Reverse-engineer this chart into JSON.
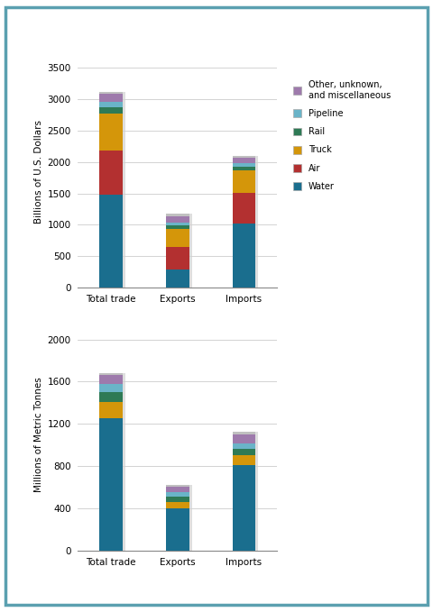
{
  "chart1": {
    "ylabel": "Billions of U.S. Dollars",
    "yticks": [
      0,
      500,
      1000,
      1500,
      2000,
      2500,
      3000,
      3500
    ],
    "ylim": [
      0,
      3700
    ],
    "categories": [
      "Total trade",
      "Exports",
      "Imports"
    ],
    "series": {
      "Water": [
        1480,
        290,
        1020
      ],
      "Air": [
        700,
        360,
        490
      ],
      "Truck": [
        590,
        280,
        350
      ],
      "Rail": [
        100,
        55,
        65
      ],
      "Pipeline": [
        90,
        50,
        55
      ],
      "Other, unknown,\nand miscellaneous": [
        120,
        100,
        80
      ]
    }
  },
  "chart2": {
    "ylabel": "Millions of Metric Tonnes",
    "yticks": [
      0,
      400,
      800,
      1200,
      1600,
      2000
    ],
    "ylim": [
      0,
      2200
    ],
    "categories": [
      "Total trade",
      "Exports",
      "Imports"
    ],
    "series": {
      "Water": [
        1250,
        400,
        810
      ],
      "Air": [
        5,
        2,
        3
      ],
      "Truck": [
        150,
        60,
        90
      ],
      "Rail": [
        100,
        50,
        60
      ],
      "Pipeline": [
        75,
        40,
        50
      ],
      "Other, unknown,\nand miscellaneous": [
        80,
        50,
        90
      ]
    }
  },
  "colors": {
    "Water": "#1a6e8e",
    "Air": "#b33030",
    "Truck": "#d4960a",
    "Rail": "#2e7a55",
    "Pipeline": "#6ab4c8",
    "Other, unknown,\nand miscellaneous": "#9e7aac"
  },
  "legend_order": [
    "Other, unknown,\nand miscellaneous",
    "Pipeline",
    "Rail",
    "Truck",
    "Air",
    "Water"
  ],
  "background": "#ffffff",
  "border_color": "#5ba0b0",
  "bar_width": 0.35
}
